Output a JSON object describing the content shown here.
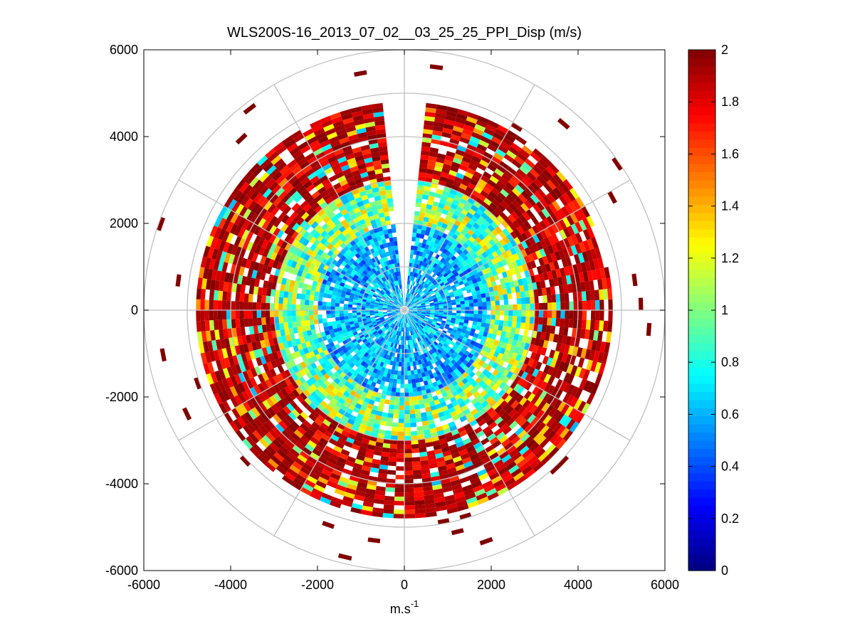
{
  "chart_data": {
    "type": "heatmap",
    "subtype": "polar-ppi-scan",
    "title": "WLS200S-16_2013_07_02__03_25_25_PPI_Disp (m/s)",
    "xlabel": "m.s",
    "xlabel_superscript": "-1",
    "ylabel": "",
    "xlim": [
      -6000,
      6000
    ],
    "ylim": [
      -6000,
      6000
    ],
    "x_ticks": [
      -6000,
      -4000,
      -2000,
      0,
      2000,
      4000,
      6000
    ],
    "y_ticks": [
      -6000,
      -4000,
      -2000,
      0,
      2000,
      4000,
      6000
    ],
    "x_tick_labels": [
      "-6000",
      "-4000",
      "-2000",
      "0",
      "2000",
      "4000",
      "6000"
    ],
    "y_tick_labels": [
      "-6000",
      "-4000",
      "-2000",
      "0",
      "2000",
      "4000",
      "6000"
    ],
    "polar_grid": {
      "ring_radii": [
        1000,
        2000,
        3000,
        4000,
        5000,
        6000
      ],
      "spoke_angles_deg": [
        0,
        30,
        60,
        90,
        120,
        150,
        180,
        210,
        240,
        270,
        300,
        330
      ]
    },
    "scan": {
      "range_start": 100,
      "range_end": 4800,
      "range_step": 100,
      "azimuth_step_deg": 3,
      "blind_sector_deg": [
        -5,
        5
      ],
      "sparse_far_range": [
        4900,
        6000
      ],
      "zones": [
        {
          "range_from": 0,
          "range_to": 2000,
          "mean_value": 0.6
        },
        {
          "range_from": 2000,
          "range_to": 3000,
          "mean_value": 1.0
        },
        {
          "range_from": 3000,
          "range_to": 4800,
          "mean_value": 1.8
        }
      ]
    },
    "colorbar": {
      "colormap": "jet",
      "vmin": 0,
      "vmax": 2,
      "ticks": [
        0,
        0.2,
        0.4,
        0.6,
        0.8,
        1,
        1.2,
        1.4,
        1.6,
        1.8,
        2
      ],
      "tick_labels": [
        "0",
        "0.2",
        "0.4",
        "0.6",
        "0.8",
        "1",
        "1.2",
        "1.4",
        "1.6",
        "1.8",
        "2"
      ]
    },
    "grid_color": "#c0c0c0",
    "background": "#ffffff"
  }
}
